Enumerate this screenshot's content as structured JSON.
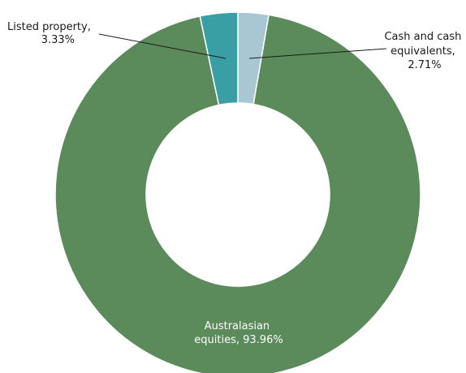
{
  "chart_data": {
    "type": "pie",
    "donut": true,
    "slices": [
      {
        "name": "Cash and cash equivalents",
        "value": 2.71,
        "color": "#a9c7d3",
        "label_lines": [
          "Cash and cash",
          "equivalents,",
          "2.71%"
        ]
      },
      {
        "name": "Australasian equities",
        "value": 93.96,
        "color": "#5b8a5b",
        "label_lines": [
          "Australasian",
          "equities, 93.96%"
        ]
      },
      {
        "name": "Listed property",
        "value": 3.33,
        "color": "#3a9ea5",
        "label_lines": [
          "Listed property,",
          "3.33%"
        ]
      }
    ],
    "legend": "none"
  }
}
